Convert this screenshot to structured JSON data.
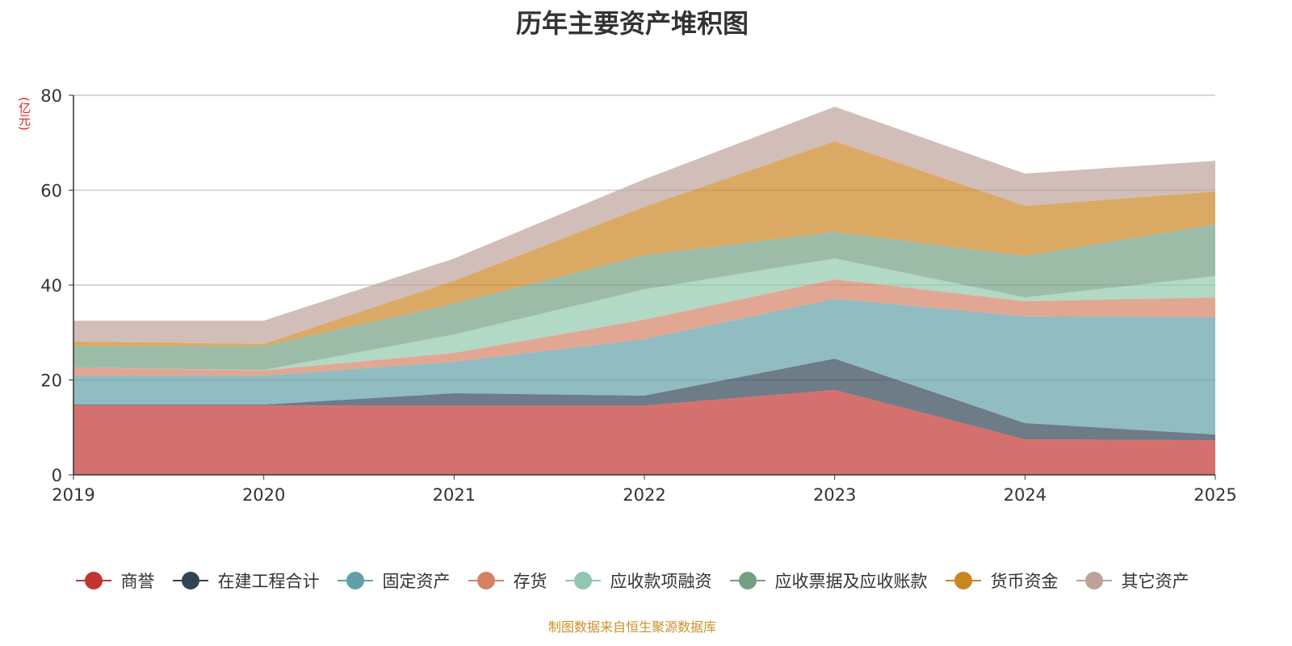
{
  "chart_data": {
    "type": "area",
    "stacked": true,
    "title": "历年主要资产堆积图",
    "ylabel": "(亿元)",
    "xlabel": "",
    "ylim": [
      0,
      80
    ],
    "yticks": [
      "0",
      "20",
      "40",
      "60",
      "80"
    ],
    "categories": [
      "2019",
      "2020",
      "2021",
      "2022",
      "2023",
      "2024",
      "2025"
    ],
    "grid": true,
    "legend_position": "bottom",
    "series": [
      {
        "name": "商誉",
        "color": "#c23531",
        "values": [
          14.6,
          14.6,
          14.6,
          14.6,
          17.9,
          7.5,
          7.3
        ]
      },
      {
        "name": "在建工程合计",
        "color": "#2f4554",
        "values": [
          0.2,
          0.2,
          2.6,
          2.1,
          6.6,
          3.4,
          1.2
        ]
      },
      {
        "name": "固定资产",
        "color": "#61a0a8",
        "values": [
          6.1,
          6.1,
          6.6,
          11.9,
          12.6,
          22.5,
          24.7
        ]
      },
      {
        "name": "存货",
        "color": "#d48265",
        "values": [
          1.7,
          1.1,
          1.9,
          4.1,
          4.1,
          3.2,
          4.2
        ]
      },
      {
        "name": "应收款项融资",
        "color": "#91c7ae",
        "values": [
          0,
          0.1,
          3.9,
          6.4,
          4.4,
          0.8,
          4.5
        ]
      },
      {
        "name": "应收票据及应收账款",
        "color": "#749f83",
        "values": [
          4.5,
          5.0,
          6.5,
          7.2,
          5.6,
          8.7,
          10.9
        ]
      },
      {
        "name": "货币资金",
        "color": "#ca8622",
        "values": [
          1.0,
          0.5,
          4.8,
          10.2,
          19.1,
          10.6,
          6.9
        ]
      },
      {
        "name": "其它资产",
        "color": "#bda29a",
        "values": [
          4.4,
          4.9,
          4.7,
          5.8,
          7.3,
          6.8,
          6.5
        ]
      }
    ]
  },
  "source": "制图数据来自恒生聚源数据库"
}
